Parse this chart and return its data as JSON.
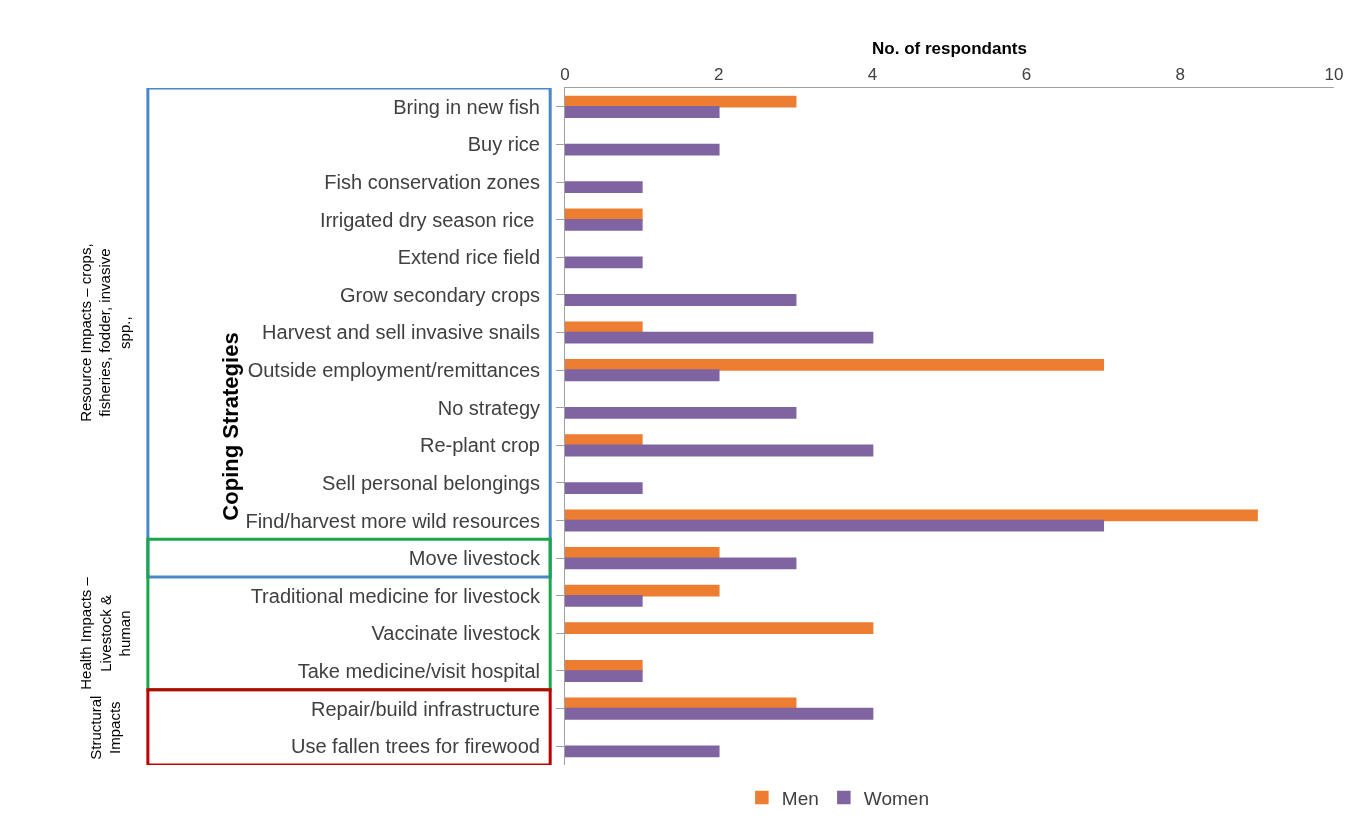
{
  "chart_data": {
    "type": "bar",
    "orientation": "horizontal",
    "xlabel": "No. of respondants",
    "ylabel": "Coping Strategies",
    "categories": [
      "Bring in new fish",
      "Buy rice",
      "Fish conservation zones",
      "Irrigated dry season rice ",
      "Extend rice field",
      "Grow secondary crops",
      "Harvest and sell invasive snails",
      "Outside employment/remittances",
      "No strategy",
      "Re-plant crop",
      "Sell personal belongings",
      "Find/harvest more wild resources",
      "Move livestock",
      "Traditional medicine for livestock",
      "Vaccinate livestock",
      "Take medicine/visit hospital",
      "Repair/build infrastructure",
      "Use fallen trees for firewood"
    ],
    "series": [
      {
        "name": "Men",
        "color": "#ed7d31",
        "values": [
          3,
          null,
          null,
          1,
          null,
          null,
          1,
          7,
          null,
          1,
          null,
          9,
          2,
          2,
          4,
          1,
          3,
          null
        ]
      },
      {
        "name": "Women",
        "color": "#8064a2",
        "values": [
          2,
          2,
          1,
          1,
          1,
          3,
          4,
          2,
          3,
          4,
          1,
          7,
          3,
          1,
          null,
          1,
          4,
          2
        ]
      }
    ],
    "xlim": [
      0,
      10
    ],
    "xticks": [
      0,
      2,
      4,
      6,
      8,
      10
    ],
    "legend": "bottom",
    "annotations": [
      "Resource Impacts – crops, fisheries, fodder, invasive spp.,",
      "Health Impacts – Livestock & human",
      "Structural Impacts"
    ]
  }
}
